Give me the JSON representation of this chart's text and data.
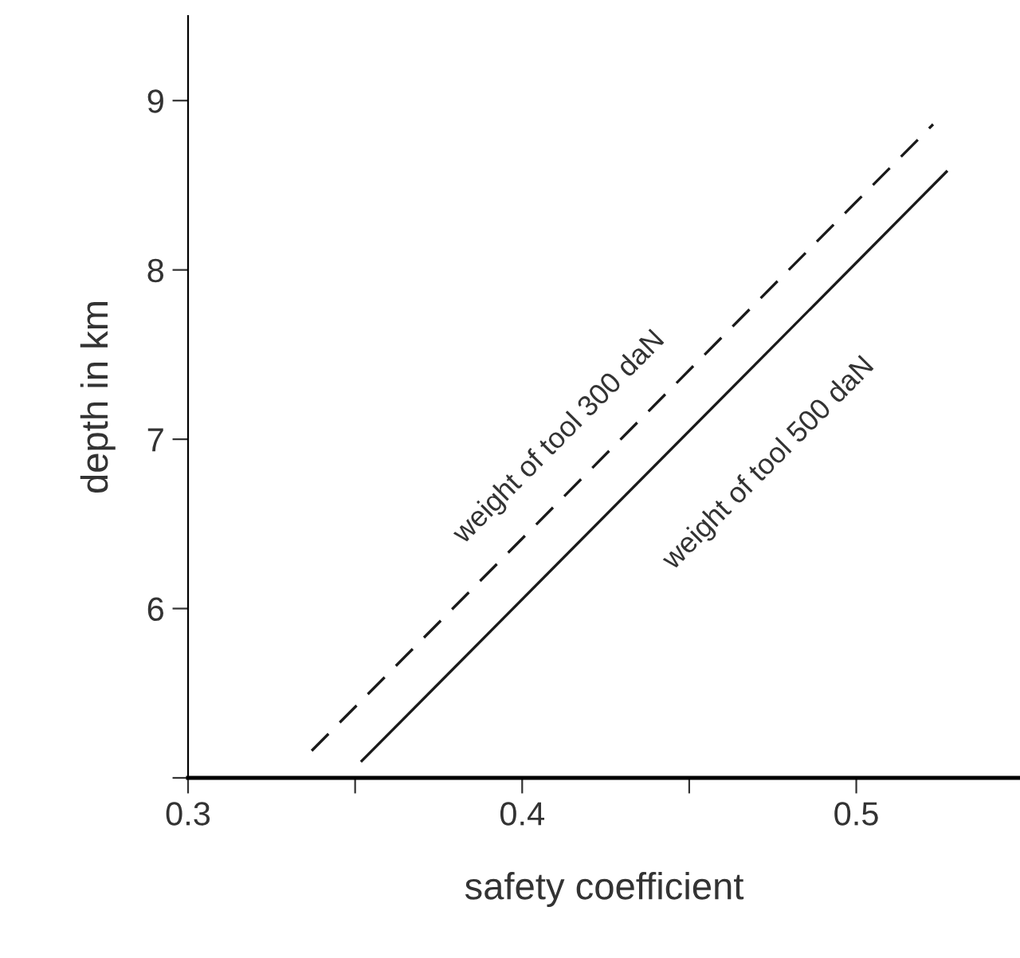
{
  "chart_data": {
    "type": "line",
    "xlabel": "safety coefficient",
    "ylabel": "depth in km",
    "series": [
      {
        "x": [
          0.337,
          0.523
        ],
        "values": [
          5.16,
          8.86
        ],
        "color": "#1a1a1a",
        "line_style": "dashed"
      },
      {
        "x": [
          0.352,
          0.527
        ],
        "values": [
          5.1,
          8.58
        ],
        "color": "#1a1a1a",
        "line_style": "solid"
      }
    ],
    "annotations": [
      "weight of tool 300 daN",
      "weight of tool 500 daN"
    ],
    "xlim": [
      0.3,
      0.549
    ],
    "ylim": [
      5,
      9.5
    ],
    "xticks": [
      0.3,
      {
        "value": 0.35,
        "label": null
      },
      0.4,
      {
        "value": 0.45,
        "label": null
      },
      0.5
    ],
    "yticks": [
      {
        "value": 5,
        "label": null
      },
      6,
      7,
      8,
      9
    ],
    "grid": false,
    "legend": false
  }
}
